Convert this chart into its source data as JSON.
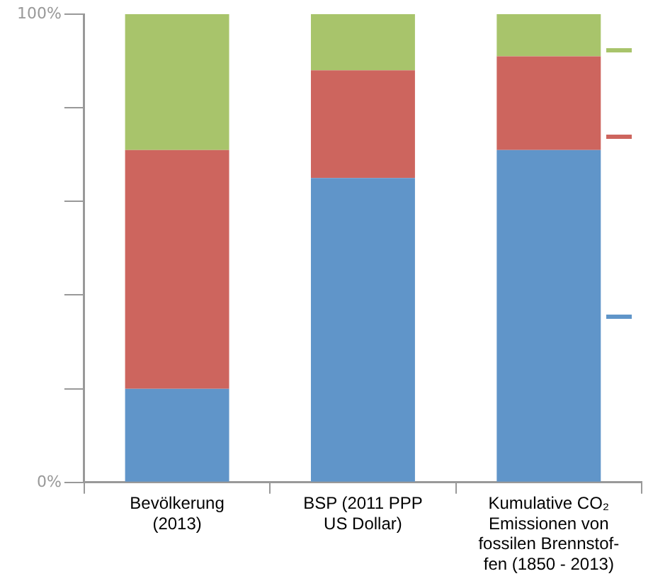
{
  "chart_data": {
    "type": "bar",
    "stacked": true,
    "categories": [
      "Bevölkerung\n(2013)",
      "BSP (2011 PPP\nUS Dollar)",
      "Kumulative CO₂\nEmissionen von\nfossilen Brennstof-\nfen (1850 - 2013)"
    ],
    "series": [
      {
        "color": "#6095c9",
        "values": [
          20,
          65,
          71
        ]
      },
      {
        "color": "#cd655e",
        "values": [
          51,
          23,
          20
        ]
      },
      {
        "color": "#a8c46b",
        "values": [
          29,
          12,
          9
        ]
      }
    ],
    "ylim": [
      0,
      100
    ],
    "yticks": [
      {
        "value": 0,
        "label": "0%"
      },
      {
        "value": 20,
        "label": null
      },
      {
        "value": 40,
        "label": null
      },
      {
        "value": 60,
        "label": null
      },
      {
        "value": 80,
        "label": null
      },
      {
        "value": 100,
        "label": "100%"
      }
    ],
    "grid": false,
    "legend": false
  }
}
